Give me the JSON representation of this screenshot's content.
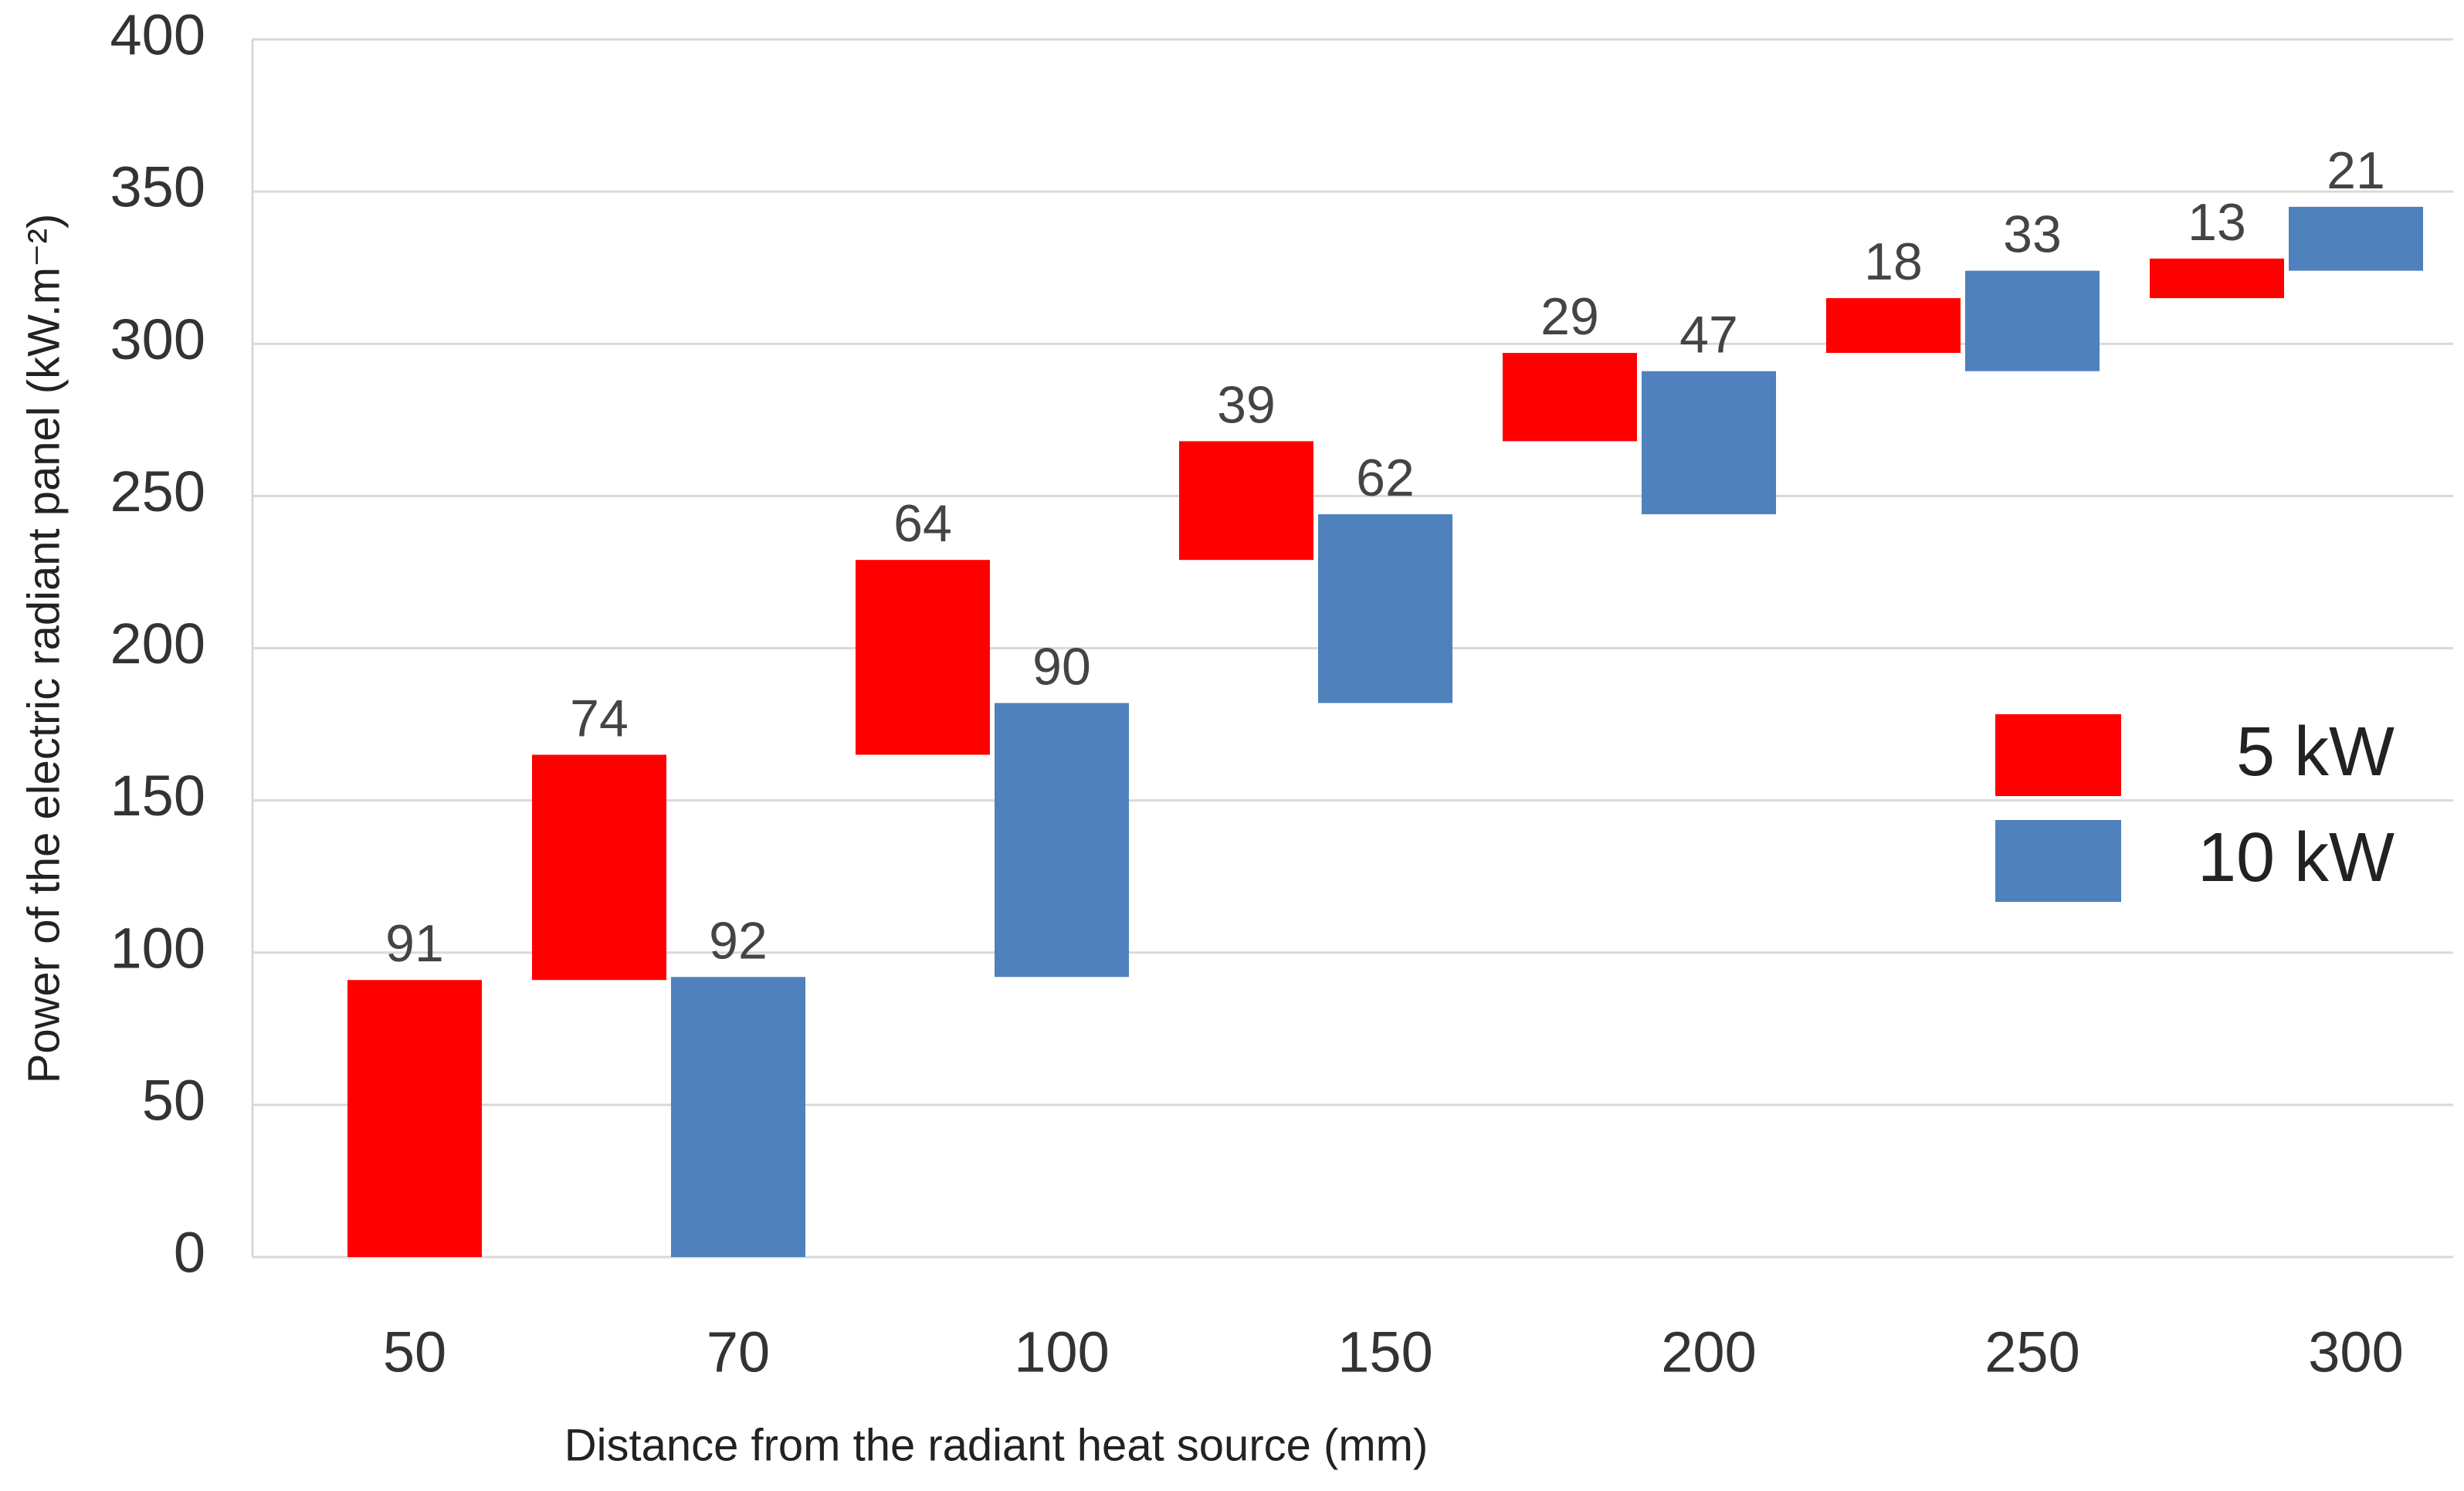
{
  "chart_data": {
    "type": "waterfall",
    "x_label": "Distance from the radiant heat source (mm)",
    "y_label": "Power of the electric radiant panel (kW.m⁻²)",
    "categories": [
      "50",
      "70",
      "100",
      "150",
      "200",
      "250",
      "300"
    ],
    "series": [
      {
        "name": "5 kW",
        "color": "#ff0000",
        "values": [
          91,
          74,
          64,
          39,
          29,
          18,
          13
        ]
      },
      {
        "name": "10 kW",
        "color": "#4f81bd",
        "values": [
          null,
          92,
          90,
          62,
          47,
          33,
          21
        ]
      }
    ],
    "ylim": [
      0,
      400
    ],
    "yticks": [
      0,
      50,
      100,
      150,
      200,
      250,
      300,
      350,
      400
    ],
    "grid": true,
    "legend": "right"
  }
}
